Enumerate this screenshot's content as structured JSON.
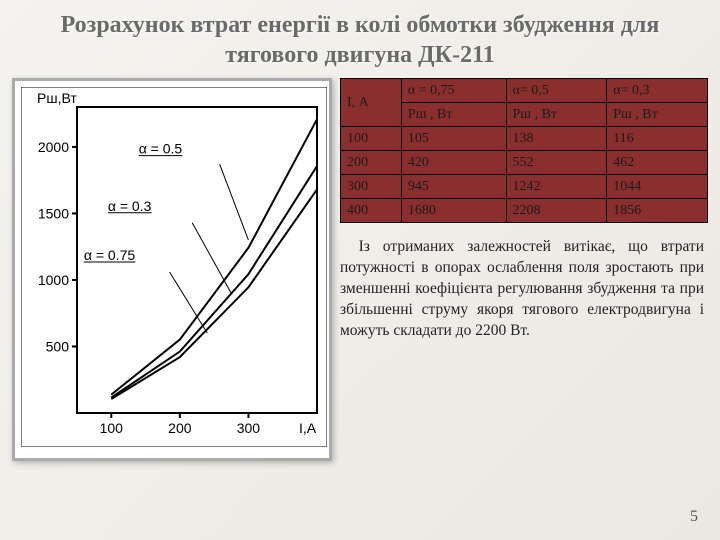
{
  "title": "Розрахунок втрат енергії в колі обмотки збудження для тягового двигуна ДК-211",
  "page_number": "5",
  "body_text": "Із отриманих залежностей витікає, що втрати потужності в опорах ослаблення поля зростають при зменшенні коефіцієнта регулювання збудження та при збільшенні струму якоря тягового електродвигуна і можуть складати до 2200 Вт.",
  "table": {
    "bg_color": "#8b2e2e",
    "border_color": "#000000",
    "text_color": "#1a1a1a",
    "fontsize": 14,
    "header1": [
      "I, А",
      "α = 0,75",
      "α= 0,5",
      "α= 0,3"
    ],
    "header2": [
      "",
      "Рш , Вт",
      "Рш , Вт",
      "Рш , Вт"
    ],
    "rows": [
      [
        "100",
        "105",
        "138",
        "116"
      ],
      [
        "200",
        "420",
        "552",
        "462"
      ],
      [
        "300",
        "945",
        "1242",
        "1044"
      ],
      [
        "400",
        "1680",
        "2208",
        "1856"
      ]
    ]
  },
  "chart": {
    "type": "line",
    "background_color": "#ffffff",
    "border_color": "#aaaaaa",
    "axis_color": "#000000",
    "axis_line_width": 2,
    "curve_color": "#000000",
    "curve_line_width": 2,
    "x_label": "I,А",
    "y_label": "Рш,Вт",
    "label_fontsize": 14,
    "x_ticks": [
      100,
      200,
      300
    ],
    "y_ticks": [
      500,
      1000,
      1500,
      2000
    ],
    "xlim": [
      50,
      400
    ],
    "ylim": [
      0,
      2300
    ],
    "series": [
      {
        "name": "α = 0.75",
        "x": [
          100,
          200,
          300,
          400
        ],
        "y": [
          105,
          420,
          945,
          1680
        ]
      },
      {
        "name": "α = 0.3",
        "x": [
          100,
          200,
          300,
          400
        ],
        "y": [
          116,
          462,
          1044,
          1856
        ]
      },
      {
        "name": "α = 0.5",
        "x": [
          100,
          200,
          300,
          400
        ],
        "y": [
          138,
          552,
          1242,
          2208
        ]
      }
    ],
    "annotations": [
      {
        "text": "α = 0.5",
        "tx": 210,
        "ty": 1950,
        "lx1": 258,
        "ly1": 1870,
        "lx2": 300,
        "ly2": 1300
      },
      {
        "text": "α = 0.3",
        "tx": 165,
        "ty": 1520,
        "lx1": 218,
        "ly1": 1430,
        "lx2": 275,
        "ly2": 900
      },
      {
        "text": "α = 0.75",
        "tx": 130,
        "ty": 1150,
        "lx1": 185,
        "ly1": 1060,
        "lx2": 240,
        "ly2": 600
      }
    ]
  }
}
